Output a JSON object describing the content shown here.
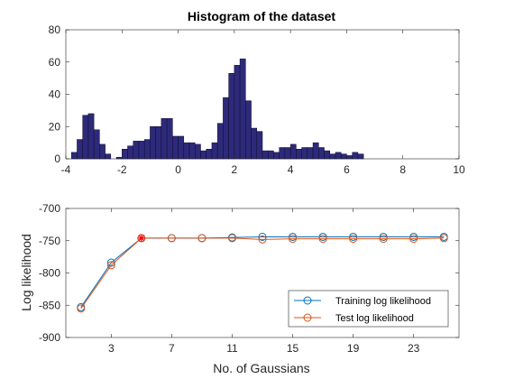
{
  "colors": {
    "axis": "#262626",
    "bar_fill": "#2e2a7a",
    "bar_edge": "#0c0a30",
    "training": "#0072bd",
    "test": "#d95319",
    "best_marker": "#ff0000"
  },
  "chart_data": [
    {
      "type": "bar",
      "title": "Histogram of the dataset",
      "xlabel": "",
      "ylabel": "",
      "xlim": [
        -4,
        10
      ],
      "ylim": [
        0,
        80
      ],
      "xticks": [
        "-4",
        "-2",
        "0",
        "2",
        "4",
        "6",
        "8",
        "10"
      ],
      "yticks": [
        "0",
        "20",
        "40",
        "60",
        "80"
      ],
      "bin_width": 0.2,
      "bin_start": -3.8,
      "values": [
        4,
        12,
        27,
        28,
        18,
        9,
        3,
        0,
        1,
        6,
        8,
        11,
        11,
        12,
        20,
        20,
        25,
        25,
        14,
        14,
        10,
        10,
        9,
        5,
        6,
        10,
        22,
        38,
        53,
        58,
        62,
        36,
        19,
        17,
        5,
        5,
        4,
        7,
        7,
        9,
        6,
        7,
        7,
        10,
        7,
        5,
        3,
        4,
        3,
        2,
        4,
        3
      ]
    },
    {
      "type": "line",
      "title": "",
      "xlabel": "No. of Gaussians",
      "ylabel": "Log likelihood",
      "xlim": [
        0,
        26
      ],
      "ylim": [
        -900,
        -700
      ],
      "xticks": [
        "3",
        "7",
        "11",
        "15",
        "19",
        "23"
      ],
      "yticks": [
        "-900",
        "-850",
        "-800",
        "-750",
        "-700"
      ],
      "legend_position": "bottom-right",
      "x": [
        1,
        3,
        5,
        7,
        9,
        11,
        13,
        15,
        17,
        19,
        21,
        23,
        25
      ],
      "series": [
        {
          "name": "Training log likelihood",
          "values": [
            -853,
            -784,
            -746,
            -746,
            -746,
            -745,
            -744,
            -744,
            -744,
            -744,
            -744,
            -744,
            -744
          ]
        },
        {
          "name": "Test log likelihood",
          "values": [
            -855,
            -788,
            -746,
            -746,
            -746,
            -746,
            -748,
            -747,
            -747,
            -747,
            -747,
            -747,
            -746
          ]
        }
      ],
      "best": {
        "x": 5,
        "y": -746
      }
    }
  ]
}
